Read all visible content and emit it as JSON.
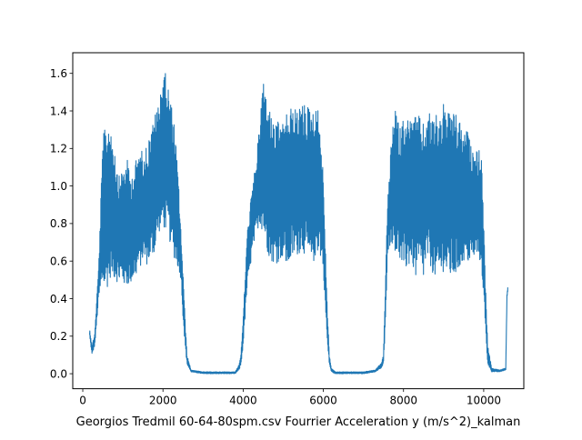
{
  "chart_data": {
    "type": "line",
    "title": "",
    "xlabel": "Georgios Tredmil 60-64-80spm.csv Fourrier Acceleration y (m/s^2)_kalman",
    "ylabel": "",
    "xlim": [
      -250,
      11000
    ],
    "ylim": [
      -0.08,
      1.71
    ],
    "x_ticks": [
      0,
      2000,
      4000,
      6000,
      8000,
      10000
    ],
    "x_tick_labels": [
      "0",
      "2000",
      "4000",
      "6000",
      "8000",
      "10000"
    ],
    "y_ticks": [
      0.0,
      0.2,
      0.4,
      0.6,
      0.8,
      1.0,
      1.2,
      1.4,
      1.6
    ],
    "y_tick_labels": [
      "0.0",
      "0.2",
      "0.4",
      "0.6",
      "0.8",
      "1.0",
      "1.2",
      "1.4",
      "1.6"
    ],
    "grid": false,
    "series": [
      {
        "color": "#1f77b4",
        "x_range": [
          170,
          10600
        ],
        "envelope_x": [
          170,
          230,
          300,
          400,
          500,
          600,
          700,
          800,
          900,
          1000,
          1100,
          1200,
          1300,
          1400,
          1500,
          1600,
          1700,
          1800,
          1900,
          2000,
          2100,
          2200,
          2300,
          2400,
          2450,
          2500,
          2550,
          2600,
          2700,
          3000,
          3500,
          3800,
          3900,
          3950,
          4000,
          4100,
          4200,
          4300,
          4400,
          4500,
          4600,
          4700,
          4800,
          4900,
          5000,
          5100,
          5200,
          5300,
          5400,
          5500,
          5600,
          5700,
          5800,
          5900,
          6000,
          6050,
          6100,
          6150,
          6200,
          6300,
          6600,
          7000,
          7300,
          7450,
          7500,
          7550,
          7600,
          7700,
          7800,
          7900,
          8000,
          8100,
          8200,
          8300,
          8400,
          8500,
          8600,
          8700,
          8800,
          8900,
          9000,
          9100,
          9200,
          9300,
          9400,
          9500,
          9600,
          9700,
          9800,
          9900,
          9950,
          10000,
          10050,
          10100,
          10200,
          10400,
          10550,
          10580,
          10600
        ],
        "upper": [
          0.24,
          0.15,
          0.22,
          0.6,
          1.27,
          1.33,
          1.35,
          1.2,
          1.05,
          1.1,
          1.15,
          1.05,
          1.12,
          1.19,
          1.19,
          1.22,
          1.3,
          1.38,
          1.45,
          1.63,
          1.58,
          1.45,
          1.3,
          0.98,
          0.75,
          0.55,
          0.3,
          0.1,
          0.02,
          0.01,
          0.01,
          0.01,
          0.05,
          0.12,
          0.3,
          0.75,
          0.95,
          1.1,
          1.3,
          1.59,
          1.45,
          1.38,
          1.32,
          1.35,
          1.33,
          1.4,
          1.42,
          1.41,
          1.43,
          1.44,
          1.43,
          1.42,
          1.42,
          1.4,
          1.05,
          0.7,
          0.35,
          0.1,
          0.03,
          0.01,
          0.01,
          0.01,
          0.02,
          0.06,
          0.1,
          0.5,
          0.9,
          1.25,
          1.44,
          1.3,
          1.37,
          1.37,
          1.36,
          1.38,
          1.37,
          1.33,
          1.38,
          1.4,
          1.39,
          1.4,
          1.44,
          1.38,
          1.43,
          1.38,
          1.35,
          1.27,
          1.3,
          1.19,
          1.2,
          1.19,
          1.15,
          0.8,
          0.45,
          0.15,
          0.03,
          0.02,
          0.03,
          0.42,
          0.46
        ],
        "lower": [
          0.2,
          0.1,
          0.15,
          0.4,
          0.44,
          0.45,
          0.52,
          0.5,
          0.48,
          0.47,
          0.46,
          0.48,
          0.5,
          0.55,
          0.6,
          0.58,
          0.6,
          0.65,
          0.75,
          0.78,
          0.75,
          0.68,
          0.6,
          0.55,
          0.5,
          0.3,
          0.15,
          0.05,
          0.01,
          0.0,
          0.0,
          0.0,
          0.02,
          0.05,
          0.15,
          0.45,
          0.6,
          0.72,
          0.8,
          0.75,
          0.65,
          0.6,
          0.58,
          0.6,
          0.62,
          0.55,
          0.6,
          0.62,
          0.64,
          0.65,
          0.6,
          0.55,
          0.62,
          0.65,
          0.55,
          0.35,
          0.15,
          0.05,
          0.01,
          0.0,
          0.0,
          0.0,
          0.01,
          0.03,
          0.05,
          0.25,
          0.65,
          0.7,
          0.65,
          0.6,
          0.55,
          0.55,
          0.6,
          0.5,
          0.55,
          0.5,
          0.6,
          0.55,
          0.5,
          0.48,
          0.55,
          0.5,
          0.5,
          0.52,
          0.55,
          0.6,
          0.58,
          0.6,
          0.62,
          0.6,
          0.55,
          0.4,
          0.2,
          0.05,
          0.01,
          0.01,
          0.02,
          0.4,
          0.44
        ]
      }
    ]
  }
}
